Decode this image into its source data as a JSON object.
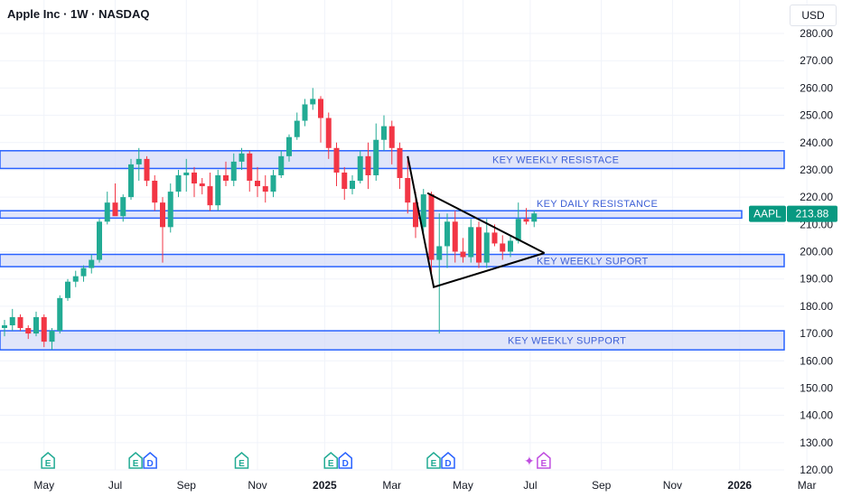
{
  "header": {
    "title": "Apple Inc · 1W · NASDAQ",
    "currency": "USD"
  },
  "colors": {
    "up": "#22ab94",
    "down": "#f23645",
    "zone_fill": "#d6dcf8",
    "zone_line": "#2962ff",
    "zone_text": "#3c5fd6",
    "earnings_green": "#22ab94",
    "earnings_blue": "#2962ff",
    "earnings_purple": "#c04ee0",
    "grid": "#f0f3fa",
    "price_tag": "#089981"
  },
  "chart_data": {
    "type": "candlestick",
    "symbol": "AAPL",
    "timeframe": "1W",
    "last_price": 213.88,
    "price_label": "213.88",
    "ylim": [
      120,
      283
    ],
    "y_ticks": [
      120,
      130,
      140,
      150,
      160,
      170,
      180,
      190,
      200,
      210,
      220,
      230,
      240,
      250,
      260,
      270,
      280
    ],
    "y_tick_labels": [
      "120.00",
      "130.00",
      "140.00",
      "150.00",
      "160.00",
      "170.00",
      "180.00",
      "190.00",
      "200.00",
      "210.00",
      "220.00",
      "230.00",
      "240.00",
      "250.00",
      "260.00",
      "270.00",
      "280.00"
    ],
    "x_labels": [
      {
        "label": "May",
        "bar": 5,
        "bold": false
      },
      {
        "label": "Jul",
        "bar": 14,
        "bold": false
      },
      {
        "label": "Sep",
        "bar": 23,
        "bold": false
      },
      {
        "label": "Nov",
        "bar": 32,
        "bold": false
      },
      {
        "label": "2025",
        "bar": 40.5,
        "bold": true
      },
      {
        "label": "Mar",
        "bar": 49,
        "bold": false
      },
      {
        "label": "May",
        "bar": 58,
        "bold": false
      },
      {
        "label": "Jul",
        "bar": 66.5,
        "bold": false
      },
      {
        "label": "Sep",
        "bar": 75.5,
        "bold": false
      },
      {
        "label": "Nov",
        "bar": 84.5,
        "bold": false
      },
      {
        "label": "2026",
        "bar": 93,
        "bold": true
      },
      {
        "label": "Mar",
        "bar": 101.5,
        "bold": false
      }
    ],
    "candles": [
      [
        172,
        175,
        169,
        173
      ],
      [
        173,
        179,
        171,
        176
      ],
      [
        176,
        177,
        171,
        172
      ],
      [
        172,
        173,
        168,
        170
      ],
      [
        170,
        178,
        169,
        176
      ],
      [
        176,
        177,
        165,
        167
      ],
      [
        167,
        172,
        164,
        171
      ],
      [
        171,
        184,
        170,
        183
      ],
      [
        183,
        190,
        182,
        189
      ],
      [
        189,
        193,
        187,
        191
      ],
      [
        191,
        195,
        189,
        194
      ],
      [
        194,
        199,
        192,
        197
      ],
      [
        197,
        212,
        196,
        211
      ],
      [
        211,
        222,
        210,
        218
      ],
      [
        218,
        225,
        214,
        213
      ],
      [
        213,
        221,
        211,
        220
      ],
      [
        220,
        234,
        219,
        232
      ],
      [
        232,
        238,
        226,
        234
      ],
      [
        234,
        235,
        224,
        226
      ],
      [
        226,
        228,
        215,
        218
      ],
      [
        218,
        220,
        196,
        209
      ],
      [
        209,
        225,
        207,
        222
      ],
      [
        222,
        230,
        220,
        228
      ],
      [
        228,
        234,
        222,
        229
      ],
      [
        229,
        231,
        220,
        225
      ],
      [
        225,
        227,
        221,
        224
      ],
      [
        224,
        229,
        215,
        217
      ],
      [
        217,
        230,
        215,
        228
      ],
      [
        228,
        233,
        224,
        226
      ],
      [
        226,
        236,
        224,
        233
      ],
      [
        233,
        238,
        230,
        236
      ],
      [
        236,
        237,
        222,
        226
      ],
      [
        226,
        231,
        220,
        224
      ],
      [
        224,
        228,
        218,
        222
      ],
      [
        222,
        230,
        220,
        228
      ],
      [
        228,
        237,
        227,
        235
      ],
      [
        235,
        243,
        233,
        242
      ],
      [
        242,
        251,
        241,
        248
      ],
      [
        248,
        256,
        246,
        254
      ],
      [
        254,
        260,
        252,
        256
      ],
      [
        256,
        257,
        240,
        249
      ],
      [
        249,
        251,
        234,
        238
      ],
      [
        238,
        240,
        224,
        229
      ],
      [
        229,
        231,
        219,
        223
      ],
      [
        223,
        228,
        221,
        226
      ],
      [
        226,
        237,
        225,
        235
      ],
      [
        235,
        240,
        223,
        228
      ],
      [
        228,
        247,
        226,
        241
      ],
      [
        241,
        250,
        237,
        246
      ],
      [
        246,
        248,
        232,
        238
      ],
      [
        238,
        240,
        223,
        227
      ],
      [
        227,
        234,
        214,
        218
      ],
      [
        218,
        222,
        205,
        209
      ],
      [
        209,
        223,
        207,
        221
      ],
      [
        221,
        222,
        190,
        197
      ],
      [
        197,
        214,
        170,
        202
      ],
      [
        202,
        214,
        194,
        211
      ],
      [
        211,
        215,
        196,
        200
      ],
      [
        200,
        205,
        196,
        198
      ],
      [
        198,
        212,
        196,
        209
      ],
      [
        209,
        211,
        194,
        196
      ],
      [
        196,
        212,
        194,
        207
      ],
      [
        207,
        210,
        202,
        203
      ],
      [
        203,
        206,
        197,
        200
      ],
      [
        200,
        206,
        198,
        204
      ],
      [
        204,
        218,
        203,
        212
      ],
      [
        212,
        216,
        210,
        211
      ],
      [
        211,
        215,
        209,
        214
      ]
    ],
    "zones": [
      {
        "name": "KEY WEEKLY RESISTACE",
        "low": 230.5,
        "high": 237.0
      },
      {
        "name": "KEY DAILY RESISTANCE",
        "low": 212.3,
        "high": 215.0
      },
      {
        "name": "KEY WEEKLY SUPORT",
        "low": 194.5,
        "high": 199.0
      },
      {
        "name": "KEY WEEKLY SUPPORT",
        "low": 164.0,
        "high": 171.0
      }
    ],
    "triangle": [
      [
        53.5,
        221.5
      ],
      [
        51,
        235
      ],
      [
        54.3,
        187
      ],
      [
        68.3,
        199.5
      ]
    ],
    "earnings": [
      {
        "bar": 5.5,
        "icons": [
          "E"
        ]
      },
      {
        "bar": 17.5,
        "icons": [
          "E",
          "D"
        ]
      },
      {
        "bar": 30,
        "icons": [
          "E"
        ]
      },
      {
        "bar": 42.2,
        "icons": [
          "E",
          "D"
        ]
      },
      {
        "bar": 55.2,
        "icons": [
          "E",
          "D"
        ]
      },
      {
        "bar": 67.3,
        "icons": [
          "✦",
          "E"
        ]
      }
    ]
  }
}
